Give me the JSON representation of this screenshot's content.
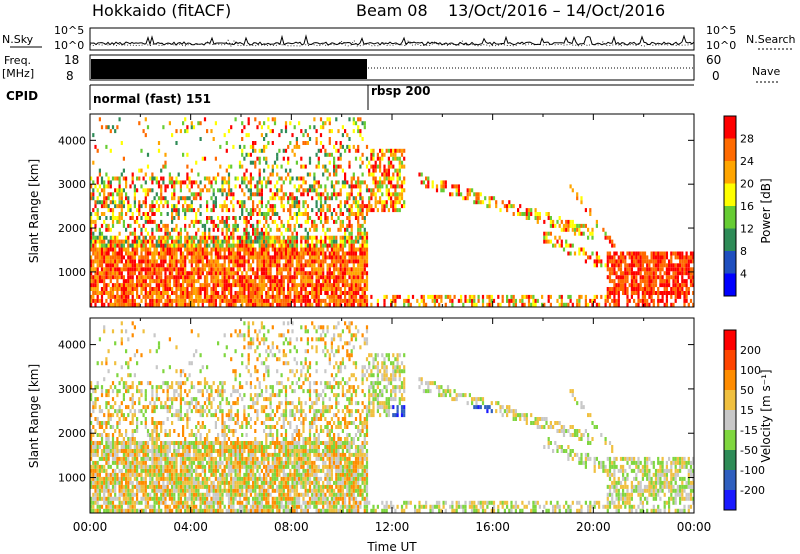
{
  "header": {
    "station": "Hokkaido (fitACF)",
    "beam": "Beam 08",
    "dates": "13/Oct/2016 – 14/Oct/2016"
  },
  "left_labels": {
    "nsky": "N.Sky",
    "freq": "Freq.",
    "freq_unit": "[MHz]",
    "cpid": "CPID"
  },
  "right_labels": {
    "nsearch": "N.Search",
    "nave": "Nave"
  },
  "top_panels": {
    "noise_ticks": [
      "10^5",
      "10^0"
    ],
    "freq_ticks": [
      "18",
      "8"
    ],
    "nave_ticks": [
      "60",
      "0"
    ],
    "cpid_segments": [
      {
        "label": "normal (fast) 151",
        "start_hour": 0
      },
      {
        "label": "rbsp 200",
        "start_hour": 11
      }
    ]
  },
  "chart_data": [
    {
      "type": "heatmap",
      "name": "power",
      "ylabel": "Slant Range [km]",
      "xlabel": "",
      "xlim": [
        0,
        24
      ],
      "ylim": [
        200,
        4600
      ],
      "yticks": [
        1000,
        2000,
        3000,
        4000
      ],
      "colorbar": {
        "label": "Power [dB]",
        "ticks": [
          4,
          8,
          12,
          16,
          20,
          24,
          28
        ],
        "colors": [
          "#0000ff",
          "#1f4fbf",
          "#2e8b57",
          "#66cc33",
          "#ffff00",
          "#ffa500",
          "#ff6a00",
          "#ff0000"
        ]
      }
    },
    {
      "type": "heatmap",
      "name": "velocity",
      "ylabel": "Slant Range [km]",
      "xlabel": "Time UT",
      "xlim": [
        0,
        24
      ],
      "ylim": [
        200,
        4600
      ],
      "yticks": [
        1000,
        2000,
        3000,
        4000
      ],
      "xticks": [
        "00:00",
        "04:00",
        "08:00",
        "12:00",
        "16:00",
        "20:00",
        "00:00"
      ],
      "colorbar": {
        "label": "Velocity [m s⁻¹]",
        "ticks": [
          200,
          100,
          50,
          15,
          -15,
          -50,
          -100,
          -200
        ],
        "colors": [
          "#1a1aff",
          "#2f5fbf",
          "#2e8b57",
          "#7fd63f",
          "#c8c8c8",
          "#f0c040",
          "#ff8c00",
          "#ff4500",
          "#ff0000"
        ]
      }
    }
  ]
}
